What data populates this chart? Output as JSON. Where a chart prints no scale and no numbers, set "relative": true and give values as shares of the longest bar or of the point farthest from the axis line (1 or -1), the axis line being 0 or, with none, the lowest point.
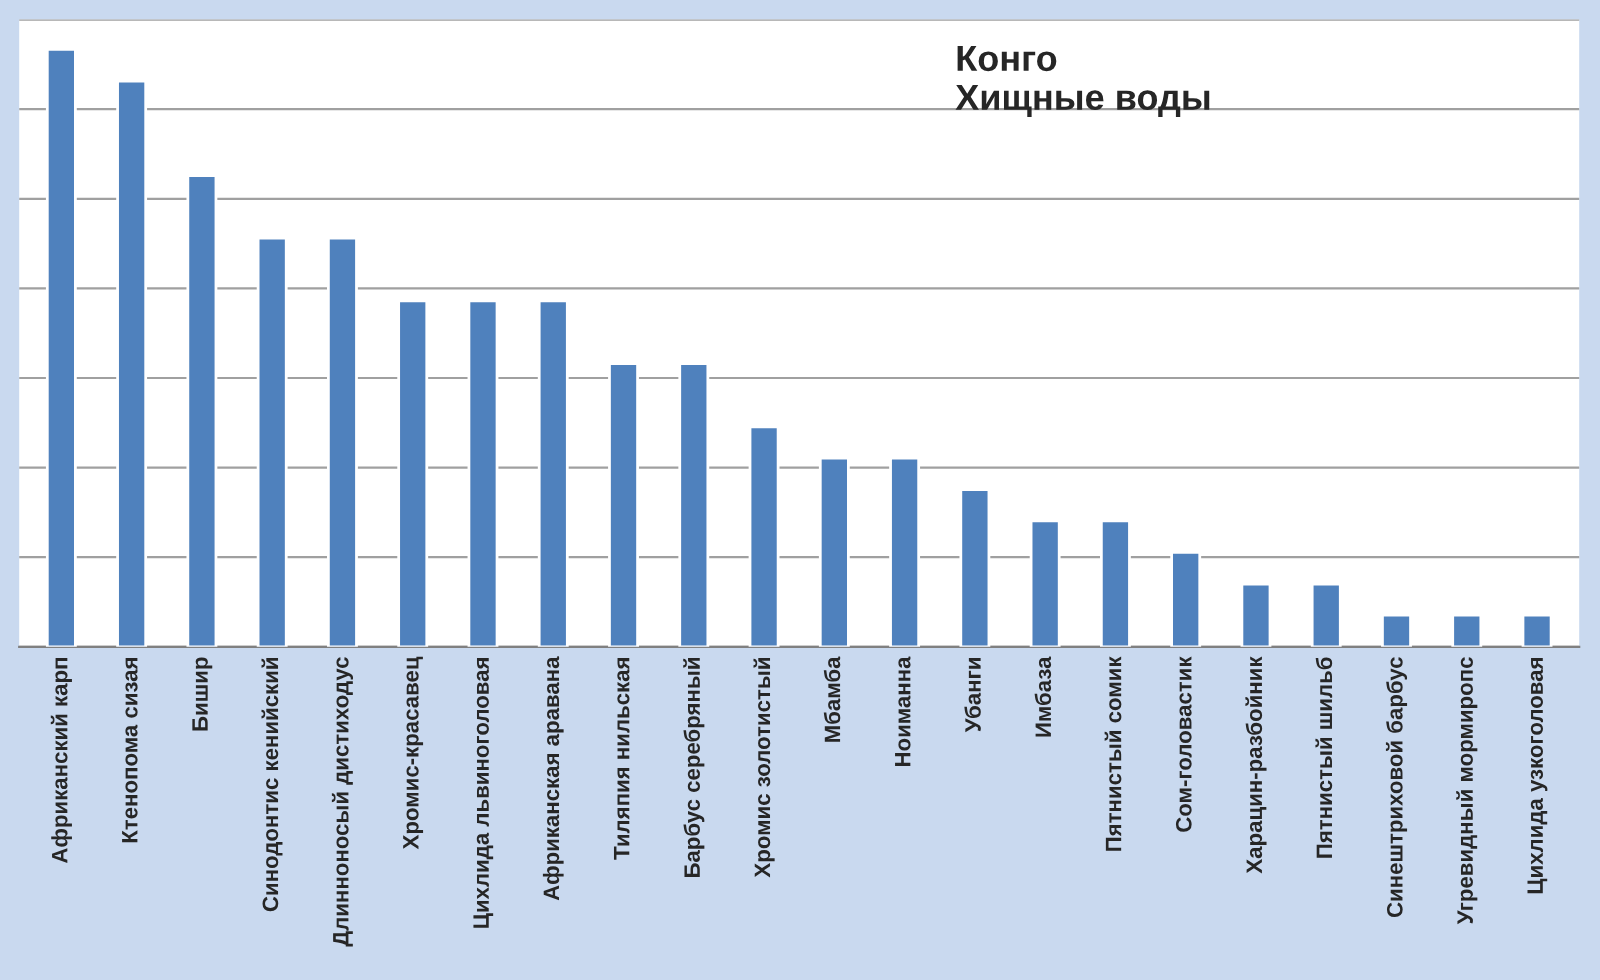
{
  "chart_data": {
    "type": "bar",
    "title": "Конго\nХищные воды",
    "relative": true,
    "color": "#4f81bd",
    "grid": "y",
    "legend": false,
    "categories": [
      "Африканский карп",
      "Ктенопома сизая",
      "Бишир",
      "Синодонтис кенийский",
      "Длинноносый дистиходус",
      "Хромис-красавец",
      "Цихлида львиноголовая",
      "Африканская аравана",
      "Тиляпия нильская",
      "Барбус серебряный",
      "Хромис золотистый",
      "Мбамба",
      "Ноиманна",
      "Убанги",
      "Имбаза",
      "Пятнистый сомик",
      "Сом-головастик",
      "Харацин-разбойник",
      "Пятнистый шильб",
      "Синештриховой барбус",
      "Угревидный мормиропс",
      "Цихлида узкоголовая"
    ],
    "values": [
      1,
      0.947,
      0.789,
      0.684,
      0.684,
      0.579,
      0.579,
      0.579,
      0.474,
      0.474,
      0.368,
      0.316,
      0.316,
      0.263,
      0.211,
      0.211,
      0.158,
      0.105,
      0.105,
      0.053,
      0.053,
      0.053
    ]
  }
}
